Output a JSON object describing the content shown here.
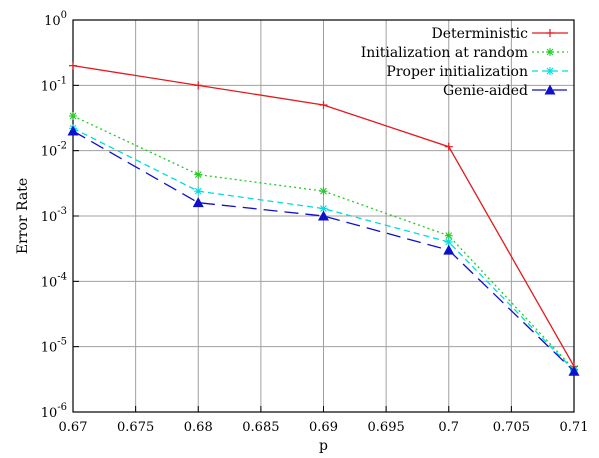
{
  "chart_data": {
    "type": "line",
    "title": "",
    "xlabel": "p",
    "ylabel": "Error Rate",
    "xlim": [
      0.67,
      0.71
    ],
    "ylim": [
      1e-06,
      1
    ],
    "yscale": "log",
    "grid": true,
    "legend_position": "top-right",
    "x_ticks": [
      "0.67",
      "0.675",
      "0.68",
      "0.685",
      "0.69",
      "0.695",
      "0.7",
      "0.705",
      "0.71"
    ],
    "y_ticks": [
      {
        "base": "10",
        "exp": "-6"
      },
      {
        "base": "10",
        "exp": "-5"
      },
      {
        "base": "10",
        "exp": "-4"
      },
      {
        "base": "10",
        "exp": "-3"
      },
      {
        "base": "10",
        "exp": "-2"
      },
      {
        "base": "10",
        "exp": "-1"
      },
      {
        "base": "10",
        "exp": "0"
      }
    ],
    "x": [
      0.67,
      0.68,
      0.69,
      0.7,
      0.71
    ],
    "series": [
      {
        "name": "Deterministic",
        "color": "#e31a1c",
        "dash": "solid",
        "marker": "plus",
        "values": [
          0.2,
          0.1,
          0.05,
          0.0115,
          5e-06
        ]
      },
      {
        "name": "Initialization at random",
        "color": "#22cc22",
        "dash": "dotted",
        "marker": "star",
        "values": [
          0.034,
          0.0043,
          0.0024,
          0.0005,
          4.5e-06
        ]
      },
      {
        "name": "Proper initialization",
        "color": "#00dddd",
        "dash": "dashed",
        "marker": "star",
        "values": [
          0.022,
          0.0024,
          0.0013,
          0.0004,
          4.3e-06
        ]
      },
      {
        "name": "Genie-aided",
        "color": "#1010cc",
        "dash": "longdash",
        "marker": "triangle",
        "values": [
          0.02,
          0.0016,
          0.001,
          0.0003,
          4.2e-06
        ]
      }
    ]
  }
}
